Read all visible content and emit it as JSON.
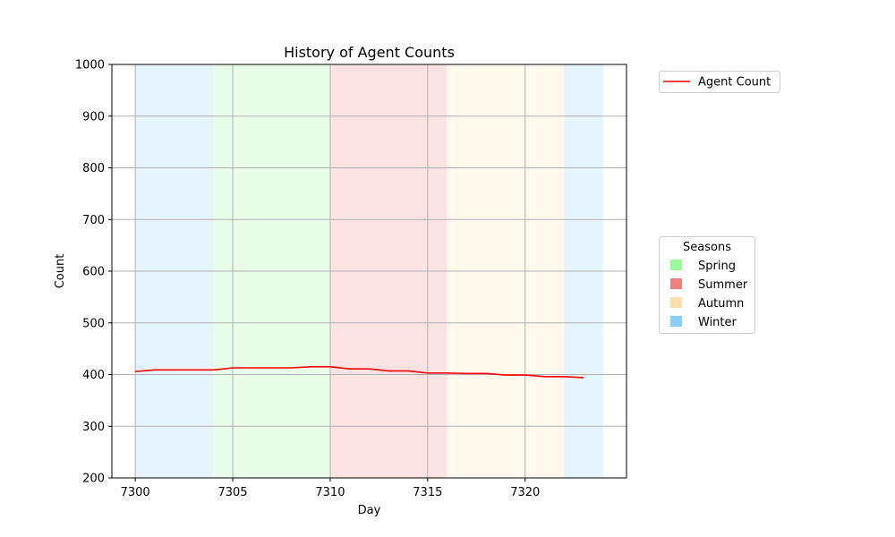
{
  "chart_data": {
    "type": "line",
    "title": "History of Agent Counts",
    "xlabel": "Day",
    "ylabel": "Count",
    "xlim": [
      7298.8,
      7325.2
    ],
    "ylim": [
      200,
      1000
    ],
    "xticks": [
      7300,
      7305,
      7310,
      7315,
      7320
    ],
    "yticks": [
      200,
      300,
      400,
      500,
      600,
      700,
      800,
      900,
      1000
    ],
    "grid": true,
    "series": [
      {
        "name": "Agent Count",
        "color": "#ff0000",
        "x": [
          7300,
          7301,
          7302,
          7303,
          7304,
          7305,
          7306,
          7307,
          7308,
          7309,
          7310,
          7311,
          7312,
          7313,
          7314,
          7315,
          7316,
          7317,
          7318,
          7319,
          7320,
          7321,
          7322,
          7323
        ],
        "y": [
          406,
          409,
          409,
          409,
          409,
          413,
          413,
          413,
          413,
          415,
          415,
          411,
          411,
          407,
          407,
          403,
          403,
          402,
          402,
          399,
          399,
          396,
          396,
          394
        ]
      }
    ],
    "seasons": [
      {
        "name": "Winter",
        "start": 7300,
        "end": 7304,
        "color": "#87cefa"
      },
      {
        "name": "Spring",
        "start": 7304,
        "end": 7310,
        "color": "#98fb98"
      },
      {
        "name": "Summer",
        "start": 7310,
        "end": 7316,
        "color": "#f08080"
      },
      {
        "name": "Autumn",
        "start": 7316,
        "end": 7322,
        "color": "#ffdead"
      },
      {
        "name": "Winter",
        "start": 7322,
        "end": 7324,
        "color": "#87cefa"
      }
    ],
    "legend_series_placement": "outside-top-right",
    "legend_seasons": {
      "title": "Seasons",
      "placement": "outside-right",
      "entries": [
        {
          "label": "Spring",
          "color": "#98fb98"
        },
        {
          "label": "Summer",
          "color": "#f08080"
        },
        {
          "label": "Autumn",
          "color": "#ffdead"
        },
        {
          "label": "Winter",
          "color": "#87cefa"
        }
      ]
    }
  }
}
